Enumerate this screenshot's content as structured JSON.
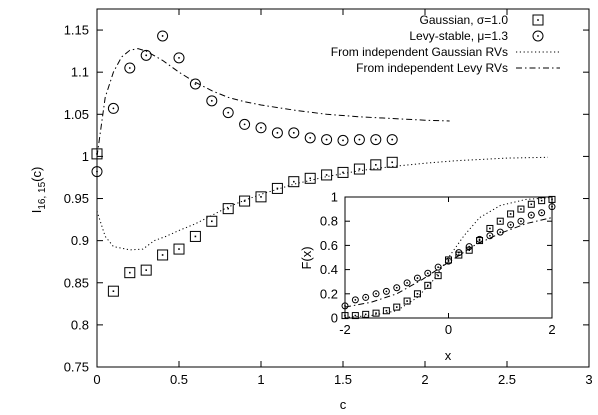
{
  "chart_data": [
    {
      "type": "scatter",
      "xlabel": "c",
      "ylabel_main": "I",
      "ylabel_sub": "16, 15",
      "ylabel_tail": "(c)",
      "xlim": [
        0,
        3
      ],
      "ylim": [
        0.75,
        1.175
      ],
      "x_ticks": [
        "0",
        "0.5",
        "1",
        "1.5",
        "2",
        "2.5",
        "3"
      ],
      "x_tick_values": [
        0,
        0.5,
        1,
        1.5,
        2,
        2.5,
        3
      ],
      "y_ticks": [
        "0.75",
        "0.8",
        "0.85",
        "0.9",
        "0.95",
        "1",
        "1.05",
        "1.1",
        "1.15"
      ],
      "y_tick_values": [
        0.75,
        0.8,
        0.85,
        0.9,
        0.95,
        1.0,
        1.05,
        1.1,
        1.15
      ],
      "legend_position": "top-right",
      "series": [
        {
          "name": "Gaussian, σ=1.0",
          "style": "square-marker",
          "points": [
            [
              0.0,
              1.003
            ],
            [
              0.1,
              0.84
            ],
            [
              0.2,
              0.862
            ],
            [
              0.3,
              0.865
            ],
            [
              0.4,
              0.883
            ],
            [
              0.5,
              0.89
            ],
            [
              0.6,
              0.905
            ],
            [
              0.7,
              0.923
            ],
            [
              0.8,
              0.938
            ],
            [
              0.9,
              0.947
            ],
            [
              1.0,
              0.952
            ],
            [
              1.1,
              0.962
            ],
            [
              1.2,
              0.97
            ],
            [
              1.3,
              0.974
            ],
            [
              1.4,
              0.978
            ],
            [
              1.5,
              0.981
            ],
            [
              1.6,
              0.985
            ],
            [
              1.7,
              0.99
            ],
            [
              1.8,
              0.993
            ]
          ]
        },
        {
          "name": "Levy-stable, μ=1.3",
          "style": "circle-dot-marker",
          "points": [
            [
              0.0,
              0.982
            ],
            [
              0.1,
              1.057
            ],
            [
              0.2,
              1.105
            ],
            [
              0.3,
              1.12
            ],
            [
              0.4,
              1.143
            ],
            [
              0.5,
              1.117
            ],
            [
              0.6,
              1.086
            ],
            [
              0.7,
              1.066
            ],
            [
              0.8,
              1.052
            ],
            [
              0.9,
              1.038
            ],
            [
              1.0,
              1.034
            ],
            [
              1.1,
              1.028
            ],
            [
              1.2,
              1.028
            ],
            [
              1.3,
              1.022
            ],
            [
              1.4,
              1.02
            ],
            [
              1.5,
              1.019
            ],
            [
              1.6,
              1.02
            ],
            [
              1.7,
              1.02
            ],
            [
              1.8,
              1.02
            ]
          ]
        },
        {
          "name": "From independent Gaussian RVs",
          "style": "dotted-line",
          "points": [
            [
              0.0,
              0.935
            ],
            [
              0.05,
              0.905
            ],
            [
              0.1,
              0.893
            ],
            [
              0.2,
              0.889
            ],
            [
              0.28,
              0.89
            ],
            [
              0.35,
              0.9
            ],
            [
              0.42,
              0.905
            ],
            [
              0.5,
              0.912
            ],
            [
              0.6,
              0.92
            ],
            [
              0.7,
              0.93
            ],
            [
              0.8,
              0.94
            ],
            [
              0.9,
              0.948
            ],
            [
              1.0,
              0.955
            ],
            [
              1.2,
              0.967
            ],
            [
              1.4,
              0.976
            ],
            [
              1.6,
              0.983
            ],
            [
              1.8,
              0.988
            ],
            [
              2.0,
              0.992
            ],
            [
              2.2,
              0.995
            ],
            [
              2.5,
              0.998
            ],
            [
              2.75,
              0.999
            ]
          ]
        },
        {
          "name": "From independent Levy RVs",
          "style": "dash-dot-line",
          "points": [
            [
              0.0,
              1.0
            ],
            [
              0.05,
              1.07
            ],
            [
              0.1,
              1.1
            ],
            [
              0.15,
              1.118
            ],
            [
              0.2,
              1.126
            ],
            [
              0.25,
              1.128
            ],
            [
              0.3,
              1.125
            ],
            [
              0.4,
              1.114
            ],
            [
              0.5,
              1.1
            ],
            [
              0.6,
              1.088
            ],
            [
              0.7,
              1.078
            ],
            [
              0.8,
              1.07
            ],
            [
              0.9,
              1.065
            ],
            [
              1.0,
              1.061
            ],
            [
              1.2,
              1.055
            ],
            [
              1.4,
              1.05
            ],
            [
              1.6,
              1.047
            ],
            [
              1.8,
              1.045
            ],
            [
              2.0,
              1.043
            ],
            [
              2.15,
              1.042
            ]
          ]
        }
      ]
    },
    {
      "type": "scatter",
      "xlabel": "x",
      "ylabel": "F(x)",
      "xlim": [
        -2,
        2
      ],
      "ylim": [
        0,
        1
      ],
      "x_ticks": [
        "-2",
        "0",
        "2"
      ],
      "x_tick_values": [
        -2,
        0,
        2
      ],
      "y_ticks": [
        "0",
        "0.2",
        "0.4",
        "0.6",
        "0.8",
        "1"
      ],
      "y_tick_values": [
        0,
        0.2,
        0.4,
        0.6,
        0.8,
        1.0
      ],
      "legend_position": "none",
      "series": [
        {
          "style": "square-marker",
          "points": [
            [
              -2.0,
              0.02
            ],
            [
              -1.8,
              0.02
            ],
            [
              -1.6,
              0.03
            ],
            [
              -1.4,
              0.04
            ],
            [
              -1.2,
              0.06
            ],
            [
              -1.0,
              0.09
            ],
            [
              -0.8,
              0.14
            ],
            [
              -0.6,
              0.2
            ],
            [
              -0.4,
              0.27
            ],
            [
              -0.2,
              0.35
            ],
            [
              0.0,
              0.48
            ],
            [
              0.2,
              0.52
            ],
            [
              0.4,
              0.56
            ],
            [
              0.6,
              0.64
            ],
            [
              0.8,
              0.74
            ],
            [
              1.0,
              0.8
            ],
            [
              1.2,
              0.86
            ],
            [
              1.4,
              0.9
            ],
            [
              1.6,
              0.94
            ],
            [
              1.8,
              0.97
            ],
            [
              2.0,
              0.98
            ]
          ]
        },
        {
          "style": "circle-dot-marker",
          "points": [
            [
              -2.0,
              0.1
            ],
            [
              -1.8,
              0.15
            ],
            [
              -1.6,
              0.17
            ],
            [
              -1.4,
              0.2
            ],
            [
              -1.2,
              0.22
            ],
            [
              -1.0,
              0.25
            ],
            [
              -0.8,
              0.29
            ],
            [
              -0.6,
              0.33
            ],
            [
              -0.4,
              0.37
            ],
            [
              -0.2,
              0.42
            ],
            [
              0.0,
              0.47
            ],
            [
              0.2,
              0.54
            ],
            [
              0.4,
              0.59
            ],
            [
              0.6,
              0.65
            ],
            [
              0.8,
              0.68
            ],
            [
              1.0,
              0.71
            ],
            [
              1.2,
              0.77
            ],
            [
              1.4,
              0.8
            ],
            [
              1.6,
              0.85
            ],
            [
              1.8,
              0.87
            ],
            [
              2.0,
              0.92
            ]
          ]
        },
        {
          "style": "dotted-line",
          "points": [
            [
              -2.0,
              0.005
            ],
            [
              -1.5,
              0.02
            ],
            [
              -1.0,
              0.06
            ],
            [
              -0.6,
              0.17
            ],
            [
              -0.3,
              0.31
            ],
            [
              0.0,
              0.5
            ],
            [
              0.3,
              0.68
            ],
            [
              0.6,
              0.83
            ],
            [
              1.0,
              0.93
            ],
            [
              1.5,
              0.98
            ],
            [
              2.0,
              0.995
            ]
          ]
        },
        {
          "style": "dash-dot-line",
          "points": [
            [
              -2.0,
              0.09
            ],
            [
              -1.5,
              0.13
            ],
            [
              -1.0,
              0.2
            ],
            [
              -0.5,
              0.32
            ],
            [
              0.0,
              0.46
            ],
            [
              0.5,
              0.6
            ],
            [
              1.0,
              0.7
            ],
            [
              1.5,
              0.78
            ],
            [
              2.0,
              0.83
            ]
          ]
        }
      ]
    }
  ]
}
